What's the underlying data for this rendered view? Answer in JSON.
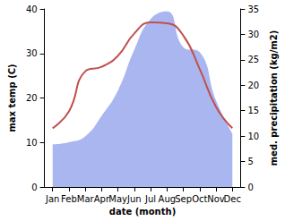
{
  "chart_data": {
    "type": "line",
    "categories": [
      "Jan",
      "Feb",
      "Mar",
      "Apr",
      "May",
      "Jun",
      "Jul",
      "Aug",
      "Sep",
      "Oct",
      "Nov",
      "Dec"
    ],
    "x_label": "date (month)",
    "y_label": "max temp (C)",
    "y2_label": "med. precipitation (kg/m2)",
    "ylim": [
      0,
      40
    ],
    "yticks": [
      0,
      10,
      20,
      30,
      40
    ],
    "y2lim": [
      0,
      35
    ],
    "y2ticks": [
      0,
      5,
      10,
      15,
      20,
      25,
      30,
      35
    ],
    "grid": false,
    "series": [
      {
        "name": "med. precipitation",
        "type": "area",
        "axis": "y2",
        "color": "#aab6f0",
        "values": [
          8.4,
          8.8,
          10,
          14,
          19,
          27,
          33,
          34.5,
          27.5,
          26.5,
          17,
          10.5
        ]
      },
      {
        "name": "max temp",
        "type": "line",
        "color": "#c0504d",
        "values": [
          13.2,
          17,
          26,
          27,
          29.5,
          34.5,
          37,
          36.8,
          34,
          26.5,
          18,
          13.2
        ]
      }
    ]
  }
}
